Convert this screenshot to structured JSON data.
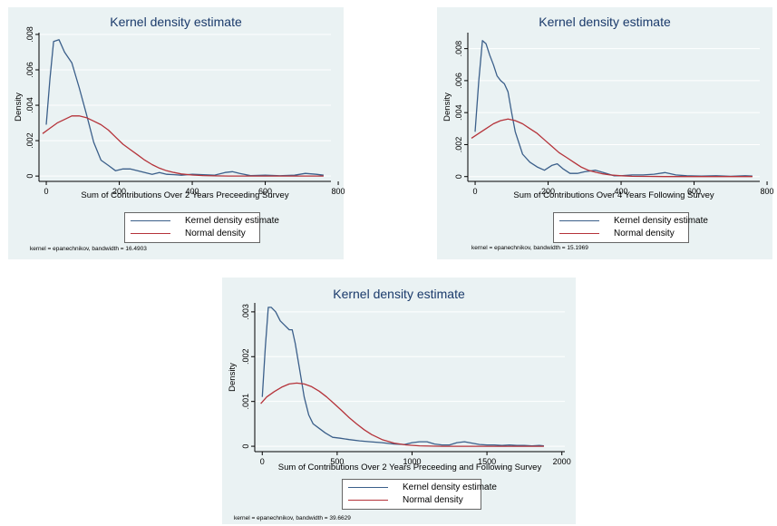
{
  "colors": {
    "kde": "#3b5f8a",
    "normal": "#b5333a",
    "panel_bg": "#eaf2f3",
    "grid": "#ffffff",
    "axis": "#000000"
  },
  "chart_data": [
    {
      "type": "line",
      "title": "Kernel density estimate",
      "xlabel": "Sum of Contributions Over 2 Years Preceeding Survey",
      "ylabel": "Density",
      "xlim": [
        -20,
        780
      ],
      "ylim": [
        -0.0003,
        0.0081
      ],
      "xticks": [
        0,
        200,
        400,
        600,
        800
      ],
      "xtick_labels": [
        "0",
        "200",
        "400",
        "600",
        "800"
      ],
      "yticks": [
        0,
        0.002,
        0.004,
        0.006,
        0.008
      ],
      "ytick_labels": [
        "0",
        ".002",
        ".004",
        ".006",
        ".008"
      ],
      "grid": true,
      "legend_position": "bottom-center",
      "series": [
        {
          "name": "Kernel density estimate",
          "x": [
            0,
            10,
            20,
            35,
            50,
            70,
            90,
            110,
            130,
            150,
            170,
            190,
            210,
            230,
            250,
            270,
            290,
            310,
            330,
            350,
            370,
            400,
            430,
            460,
            490,
            510,
            530,
            560,
            600,
            640,
            680,
            710,
            740,
            760
          ],
          "y": [
            0.0029,
            0.0055,
            0.0076,
            0.0077,
            0.007,
            0.0064,
            0.005,
            0.0035,
            0.0019,
            0.0009,
            0.0006,
            0.0003,
            0.0004,
            0.0004,
            0.0003,
            0.0002,
            0.0001,
            0.0002,
            0.0001,
            8e-05,
            5e-05,
            0.0001,
            8e-05,
            5e-05,
            0.0002,
            0.00025,
            0.00015,
            3e-05,
            5e-05,
            2e-05,
            5e-05,
            0.00015,
            0.0001,
            5e-05
          ]
        },
        {
          "name": "Normal density",
          "x": [
            -10,
            10,
            30,
            50,
            70,
            90,
            110,
            130,
            150,
            170,
            190,
            210,
            230,
            250,
            270,
            290,
            310,
            330,
            350,
            370,
            400,
            430,
            460,
            500,
            550,
            600,
            650,
            700,
            760
          ],
          "y": [
            0.0024,
            0.0027,
            0.003,
            0.0032,
            0.0034,
            0.0034,
            0.0033,
            0.0031,
            0.0029,
            0.0026,
            0.0022,
            0.0018,
            0.0015,
            0.0012,
            0.0009,
            0.00065,
            0.00045,
            0.0003,
            0.0002,
            0.00012,
            6e-05,
            3e-05,
            1e-05,
            0,
            0,
            0,
            0,
            0,
            0
          ]
        }
      ],
      "note": "kernel = epanechnikov, bandwidth = 16.4903"
    },
    {
      "type": "line",
      "title": "Kernel density estimate",
      "xlabel": "Sum of Contributions Over 4 Years Following Survey",
      "ylabel": "Density",
      "xlim": [
        -20,
        780
      ],
      "ylim": [
        -0.0003,
        0.009
      ],
      "xticks": [
        0,
        200,
        400,
        600,
        800
      ],
      "xtick_labels": [
        "0",
        "200",
        "400",
        "600",
        "800"
      ],
      "yticks": [
        0,
        0.002,
        0.004,
        0.006,
        0.008
      ],
      "ytick_labels": [
        "0",
        ".002",
        ".004",
        ".006",
        ".008"
      ],
      "grid": true,
      "legend_position": "bottom-center",
      "series": [
        {
          "name": "Kernel density estimate",
          "x": [
            0,
            10,
            20,
            30,
            40,
            50,
            60,
            70,
            80,
            90,
            100,
            110,
            130,
            150,
            170,
            190,
            210,
            225,
            240,
            260,
            280,
            300,
            330,
            360,
            380,
            400,
            430,
            460,
            490,
            520,
            550,
            580,
            620,
            660,
            700,
            740,
            760
          ],
          "y": [
            0.0028,
            0.006,
            0.0085,
            0.0083,
            0.0076,
            0.007,
            0.0063,
            0.006,
            0.0058,
            0.0053,
            0.004,
            0.0028,
            0.0014,
            0.0009,
            0.0006,
            0.0004,
            0.0007,
            0.0008,
            0.0005,
            0.0002,
            0.0002,
            0.0003,
            0.0004,
            0.0002,
            5e-05,
            5e-05,
            0.0001,
            0.0001,
            0.00015,
            0.00025,
            0.0001,
            5e-05,
            3e-05,
            5e-05,
            2e-05,
            5e-05,
            3e-05
          ]
        },
        {
          "name": "Normal density",
          "x": [
            -10,
            10,
            30,
            50,
            70,
            90,
            110,
            130,
            150,
            170,
            190,
            210,
            230,
            250,
            270,
            290,
            310,
            330,
            350,
            370,
            400,
            430,
            470,
            520,
            600,
            700,
            760
          ],
          "y": [
            0.0024,
            0.0027,
            0.003,
            0.0033,
            0.0035,
            0.0036,
            0.0035,
            0.0033,
            0.003,
            0.0027,
            0.0023,
            0.0019,
            0.0015,
            0.0012,
            0.0009,
            0.0006,
            0.0004,
            0.00027,
            0.00017,
            0.0001,
            5e-05,
            2e-05,
            1e-05,
            0,
            0,
            0,
            0
          ]
        }
      ],
      "note": "kernel = epanechnikov, bandwidth = 15.1969"
    },
    {
      "type": "line",
      "title": "Kernel density estimate",
      "xlabel": "Sum of Contributions Over 2 Years Preceeding and Following Survey",
      "ylabel": "Density",
      "xlim": [
        -50,
        2020
      ],
      "ylim": [
        -0.00012,
        0.0032
      ],
      "xticks": [
        0,
        500,
        1000,
        1500,
        2000
      ],
      "xtick_labels": [
        "0",
        "500",
        "1000",
        "1500",
        "2000"
      ],
      "yticks": [
        0,
        0.001,
        0.002,
        0.003
      ],
      "ytick_labels": [
        "0",
        ".001",
        ".002",
        ".003"
      ],
      "grid": true,
      "legend_position": "bottom-center",
      "series": [
        {
          "name": "Kernel density estimate",
          "x": [
            0,
            20,
            40,
            60,
            90,
            120,
            150,
            180,
            200,
            220,
            250,
            280,
            310,
            340,
            380,
            420,
            470,
            520,
            580,
            650,
            720,
            800,
            880,
            950,
            1000,
            1050,
            1100,
            1150,
            1200,
            1250,
            1300,
            1350,
            1400,
            1450,
            1500,
            1550,
            1600,
            1650,
            1700,
            1750,
            1800,
            1850,
            1880
          ],
          "y": [
            0.0011,
            0.0022,
            0.0031,
            0.0031,
            0.003,
            0.0028,
            0.0027,
            0.0026,
            0.0026,
            0.0023,
            0.0017,
            0.0011,
            0.0007,
            0.0005,
            0.0004,
            0.0003,
            0.0002,
            0.00018,
            0.00015,
            0.00012,
            0.0001,
            8e-05,
            5e-05,
            4e-05,
            8e-05,
            0.0001,
            0.0001,
            5e-05,
            3e-05,
            3e-05,
            8e-05,
            0.0001,
            7e-05,
            4e-05,
            3e-05,
            3e-05,
            2e-05,
            3e-05,
            2e-05,
            2e-05,
            1e-05,
            2e-05,
            1e-05
          ]
        },
        {
          "name": "Normal density",
          "x": [
            -10,
            30,
            80,
            130,
            180,
            230,
            280,
            330,
            380,
            430,
            480,
            530,
            580,
            630,
            680,
            730,
            800,
            880,
            960,
            1050,
            1200,
            1400,
            1600,
            1880
          ],
          "y": [
            0.00095,
            0.0011,
            0.00122,
            0.00132,
            0.00139,
            0.00141,
            0.00139,
            0.00133,
            0.00123,
            0.0011,
            0.00095,
            0.0008,
            0.00064,
            0.0005,
            0.00037,
            0.00026,
            0.00015,
            7e-05,
            3e-05,
            1e-05,
            0,
            0,
            0,
            0
          ]
        }
      ],
      "note": "kernel = epanechnikov, bandwidth = 39.6629"
    }
  ]
}
